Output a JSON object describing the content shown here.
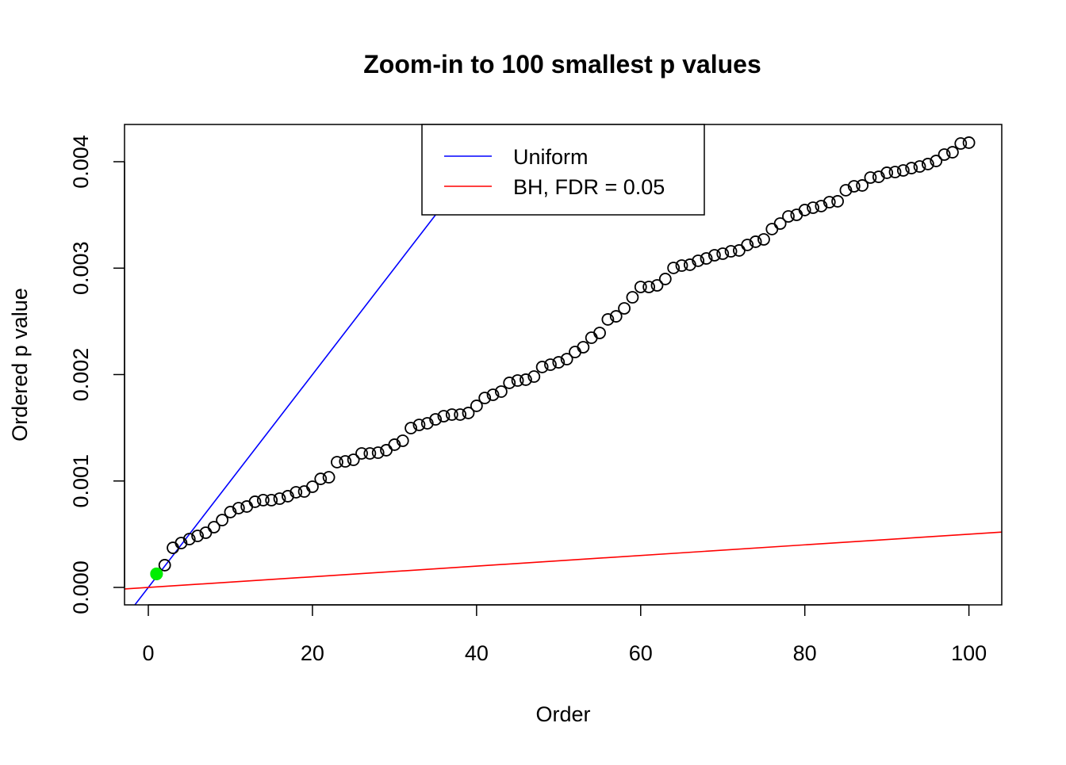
{
  "chart_data": {
    "type": "scatter",
    "title": "Zoom-in to 100 smallest p values",
    "xlabel": "Order",
    "ylabel": "Ordered p value",
    "xlim": [
      -2.9,
      104
    ],
    "ylim": [
      -0.000164,
      0.00435
    ],
    "x_ticks": [
      0,
      20,
      40,
      60,
      80,
      100
    ],
    "x_tick_labels": [
      "0",
      "20",
      "40",
      "60",
      "80",
      "100"
    ],
    "y_ticks": [
      0,
      0.001,
      0.002,
      0.003,
      0.004
    ],
    "y_tick_labels": [
      "0.000",
      "0.001",
      "0.002",
      "0.003",
      "0.004"
    ],
    "grid": false,
    "legend_position": "top-center",
    "legend": [
      {
        "label": "Uniform",
        "color": "#0000ff"
      },
      {
        "label": "BH, FDR = 0.05",
        "color": "#ff0000"
      }
    ],
    "lines": [
      {
        "name": "Uniform",
        "slope": 0.0001,
        "intercept": 0,
        "color": "#0000ff"
      },
      {
        "name": "BH, FDR = 0.05",
        "slope": 5e-06,
        "intercept": 0,
        "color": "#ff0000"
      }
    ],
    "highlight": {
      "x": 1,
      "y": 0.000127,
      "color": "#00ee00"
    },
    "series": [
      {
        "name": "Ordered p values",
        "x": [
          1,
          2,
          3,
          4,
          5,
          6,
          7,
          8,
          9,
          10,
          11,
          12,
          13,
          14,
          15,
          16,
          17,
          18,
          19,
          20,
          21,
          22,
          23,
          24,
          25,
          26,
          27,
          28,
          29,
          30,
          31,
          32,
          33,
          34,
          35,
          36,
          37,
          38,
          39,
          40,
          41,
          42,
          43,
          44,
          45,
          46,
          47,
          48,
          49,
          50,
          51,
          52,
          53,
          54,
          55,
          56,
          57,
          58,
          59,
          60,
          61,
          62,
          63,
          64,
          65,
          66,
          67,
          68,
          69,
          70,
          71,
          72,
          73,
          74,
          75,
          76,
          77,
          78,
          79,
          80,
          81,
          82,
          83,
          84,
          85,
          86,
          87,
          88,
          89,
          90,
          91,
          92,
          93,
          94,
          95,
          96,
          97,
          98,
          99,
          100
        ],
        "values": [
          0.000127,
          0.000209,
          0.000372,
          0.000417,
          0.000454,
          0.000484,
          0.000514,
          0.000566,
          0.000633,
          0.000708,
          0.000745,
          0.00076,
          0.000805,
          0.00082,
          0.00082,
          0.000834,
          0.000857,
          0.000894,
          0.000901,
          0.000946,
          0.00102,
          0.001035,
          0.001177,
          0.001184,
          0.001199,
          0.001259,
          0.001259,
          0.001266,
          0.001289,
          0.001341,
          0.001378,
          0.001497,
          0.001527,
          0.001542,
          0.001579,
          0.001609,
          0.001624,
          0.001624,
          0.001639,
          0.001706,
          0.00178,
          0.00181,
          0.00184,
          0.001922,
          0.001944,
          0.001952,
          0.001981,
          0.002071,
          0.002093,
          0.002115,
          0.002145,
          0.002212,
          0.002257,
          0.002346,
          0.002391,
          0.002518,
          0.002547,
          0.002622,
          0.002726,
          0.002823,
          0.002823,
          0.002838,
          0.002898,
          0.003002,
          0.003024,
          0.003032,
          0.003069,
          0.003091,
          0.003121,
          0.003136,
          0.003158,
          0.003166,
          0.003218,
          0.003248,
          0.00327,
          0.003367,
          0.003419,
          0.003486,
          0.003501,
          0.003546,
          0.003568,
          0.003583,
          0.00362,
          0.003628,
          0.003732,
          0.003769,
          0.003777,
          0.003851,
          0.003858,
          0.003896,
          0.003903,
          0.003918,
          0.00394,
          0.003955,
          0.003978,
          0.004007,
          0.004067,
          0.004089,
          0.004171,
          0.004179
        ]
      }
    ]
  }
}
